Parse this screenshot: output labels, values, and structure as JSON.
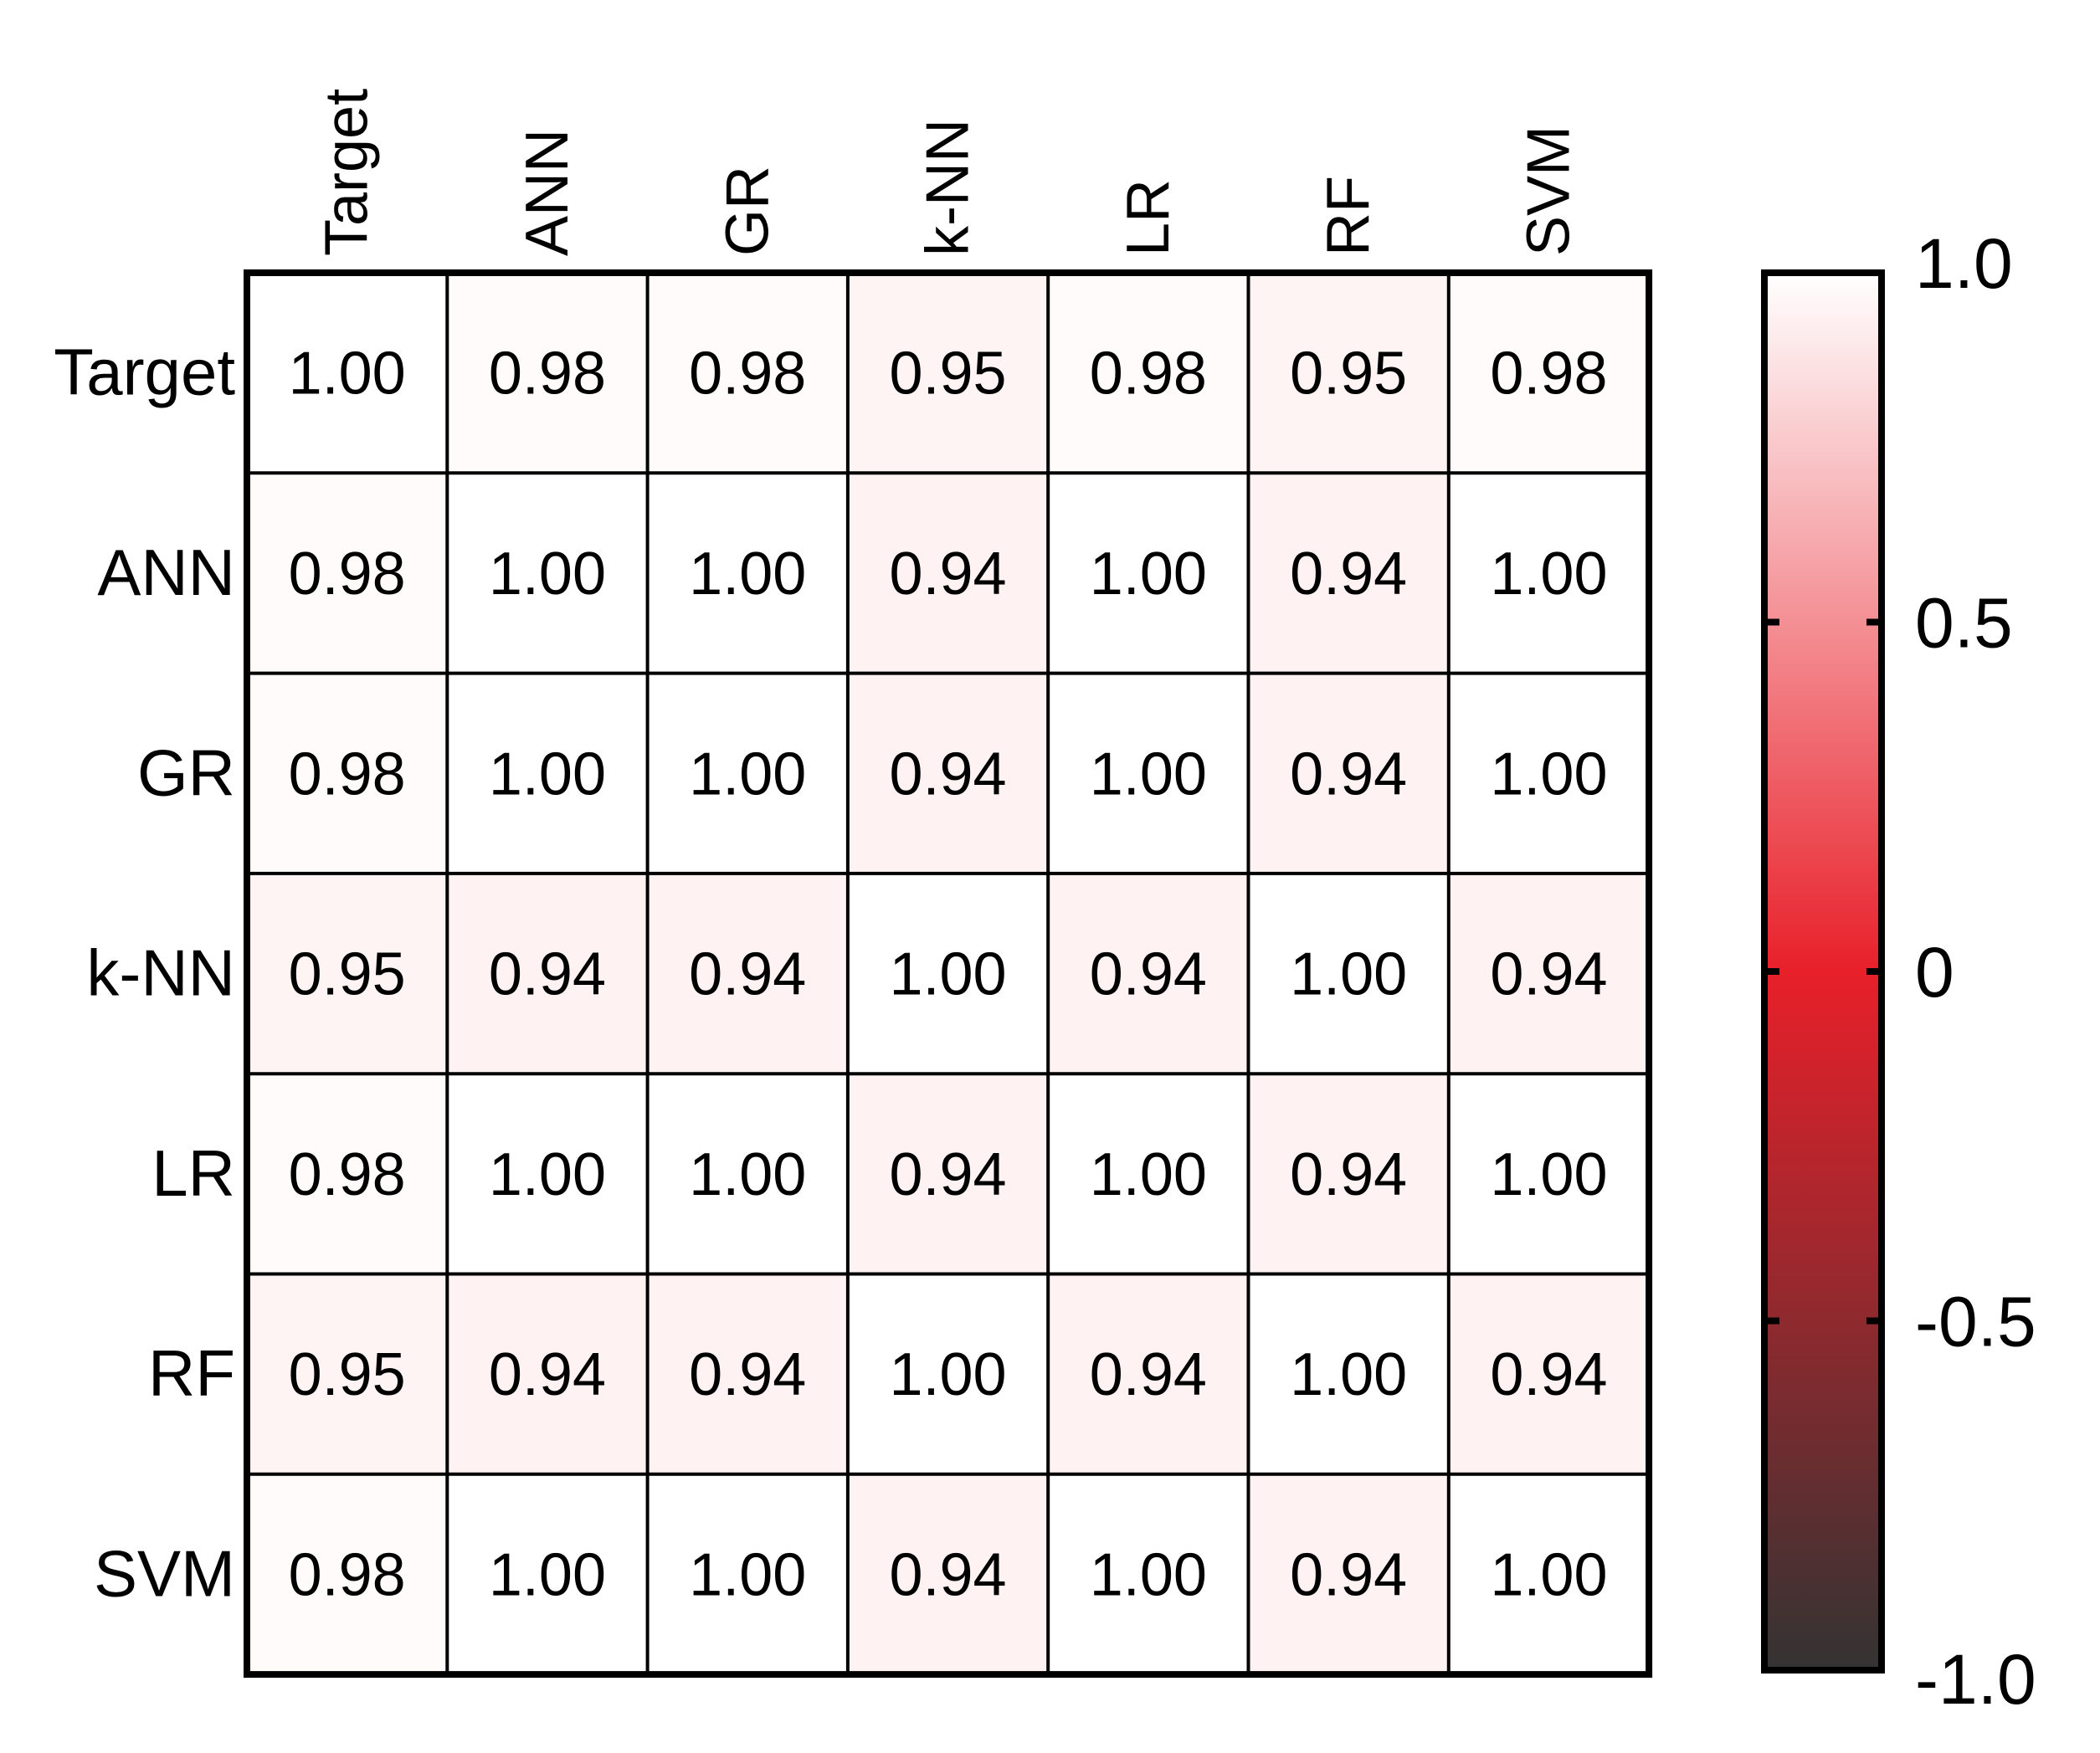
{
  "chart_data": {
    "type": "heatmap",
    "title": "",
    "xlabel": "",
    "ylabel": "",
    "x_labels": [
      "Target",
      "ANN",
      "GR",
      "k-NN",
      "LR",
      "RF",
      "SVM"
    ],
    "y_labels": [
      "Target",
      "ANN",
      "GR",
      "k-NN",
      "LR",
      "RF",
      "SVM"
    ],
    "matrix": [
      [
        "1.00",
        "0.98",
        "0.98",
        "0.95",
        "0.98",
        "0.95",
        "0.98"
      ],
      [
        "0.98",
        "1.00",
        "1.00",
        "0.94",
        "1.00",
        "0.94",
        "1.00"
      ],
      [
        "0.98",
        "1.00",
        "1.00",
        "0.94",
        "1.00",
        "0.94",
        "1.00"
      ],
      [
        "0.95",
        "0.94",
        "0.94",
        "1.00",
        "0.94",
        "1.00",
        "0.94"
      ],
      [
        "0.98",
        "1.00",
        "1.00",
        "0.94",
        "1.00",
        "0.94",
        "1.00"
      ],
      [
        "0.95",
        "0.94",
        "0.94",
        "1.00",
        "0.94",
        "1.00",
        "0.94"
      ],
      [
        "0.98",
        "1.00",
        "1.00",
        "0.94",
        "1.00",
        "0.94",
        "1.00"
      ]
    ],
    "value_range": [
      -1.0,
      1.0
    ],
    "colorbar": {
      "ticks": [
        1.0,
        0.5,
        0,
        -0.5,
        -1.0
      ],
      "tick_labels": [
        "1.0",
        "0.5",
        "0",
        "-0.5",
        "-1.0"
      ],
      "colors": {
        "high": "#ffffff",
        "mid": "#e8202a",
        "low": "#333333"
      }
    },
    "grid": true,
    "legend": "right"
  }
}
